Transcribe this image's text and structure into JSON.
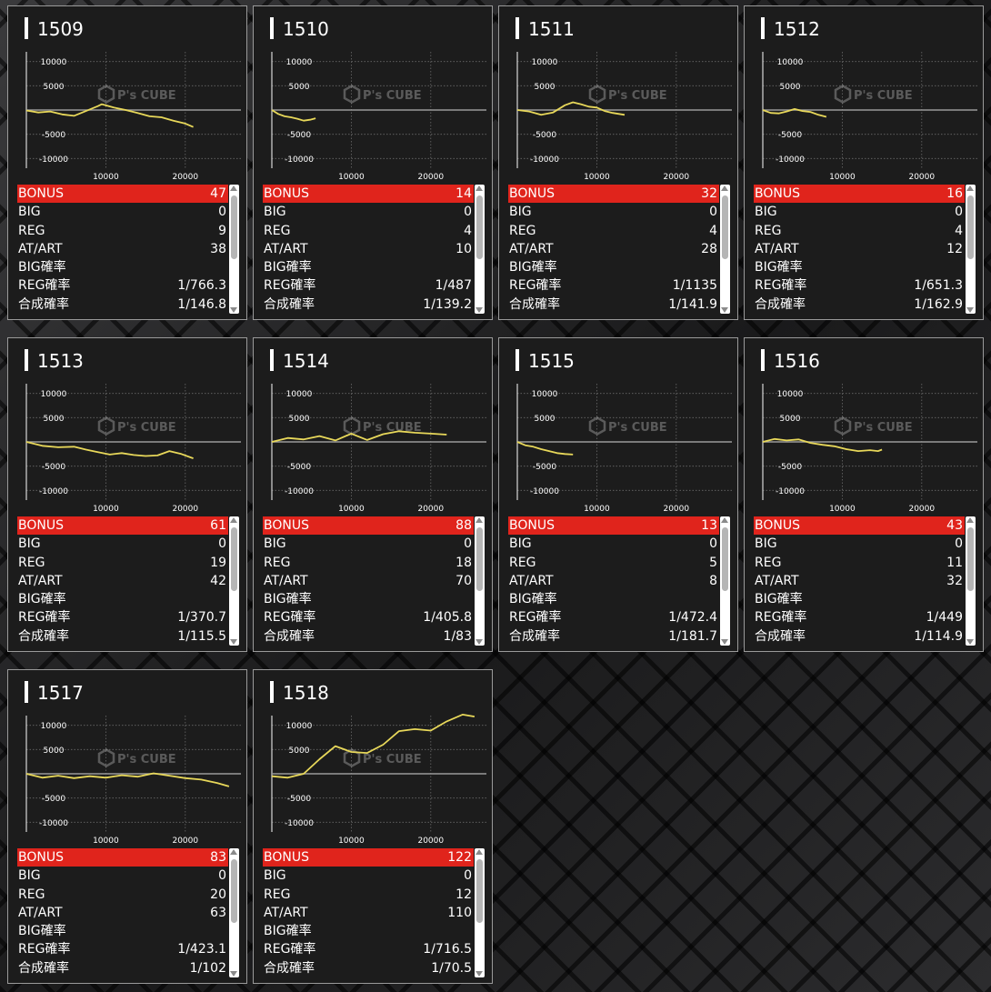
{
  "labels": {
    "bonus": "BONUS",
    "big": "BIG",
    "reg": "REG",
    "atart": "AT/ART",
    "big_rate": "BIG確率",
    "reg_rate": "REG確率",
    "combined_rate": "合成確率"
  },
  "watermark": {
    "text": "P's CUBE"
  },
  "colors": {
    "accent": "#e0241c",
    "line": "#e8d85a",
    "panel": "#1c1c1c"
  },
  "machines": [
    {
      "id": "1509",
      "bonus": "47",
      "big": "0",
      "reg": "9",
      "atart": "38",
      "big_rate": "",
      "reg_rate": "1/766.3",
      "combined_rate": "1/146.8",
      "chart_data": {
        "type": "line",
        "xlim": [
          0,
          27000
        ],
        "ylim": [
          -12000,
          12000
        ],
        "y_ticks": [
          "10000",
          "5000",
          "-5000",
          "-10000"
        ],
        "x_ticks": [
          "10000",
          "20000"
        ],
        "x": [
          0,
          1500,
          3000,
          4500,
          6000,
          7500,
          9000,
          9500,
          11000,
          12500,
          14000,
          15500,
          17000,
          18500,
          20000,
          21000
        ],
        "y": [
          -100,
          -500,
          -300,
          -900,
          -1200,
          -200,
          800,
          1200,
          500,
          0,
          -600,
          -1300,
          -1500,
          -2200,
          -2800,
          -3500
        ]
      }
    },
    {
      "id": "1510",
      "bonus": "14",
      "big": "0",
      "reg": "4",
      "atart": "10",
      "big_rate": "",
      "reg_rate": "1/487",
      "combined_rate": "1/139.2",
      "chart_data": {
        "type": "line",
        "xlim": [
          0,
          27000
        ],
        "ylim": [
          -12000,
          12000
        ],
        "y_ticks": [
          "10000",
          "5000",
          "-5000",
          "-10000"
        ],
        "x_ticks": [
          "10000",
          "20000"
        ],
        "x": [
          0,
          800,
          1600,
          2400,
          3200,
          4000,
          4800,
          5500
        ],
        "y": [
          0,
          -800,
          -1300,
          -1500,
          -1800,
          -2200,
          -2000,
          -1700
        ]
      }
    },
    {
      "id": "1511",
      "bonus": "32",
      "big": "0",
      "reg": "4",
      "atart": "28",
      "big_rate": "",
      "reg_rate": "1/1135",
      "combined_rate": "1/141.9",
      "chart_data": {
        "type": "line",
        "xlim": [
          0,
          27000
        ],
        "ylim": [
          -12000,
          12000
        ],
        "y_ticks": [
          "10000",
          "5000",
          "-5000",
          "-10000"
        ],
        "x_ticks": [
          "10000",
          "20000"
        ],
        "x": [
          0,
          1500,
          3000,
          4500,
          6000,
          7000,
          8000,
          9000,
          10000,
          11000,
          12000,
          13500
        ],
        "y": [
          0,
          -300,
          -1000,
          -500,
          1000,
          1600,
          1200,
          700,
          500,
          -200,
          -600,
          -1000
        ]
      }
    },
    {
      "id": "1512",
      "bonus": "16",
      "big": "0",
      "reg": "4",
      "atart": "12",
      "big_rate": "",
      "reg_rate": "1/651.3",
      "combined_rate": "1/162.9",
      "chart_data": {
        "type": "line",
        "xlim": [
          0,
          27000
        ],
        "ylim": [
          -12000,
          12000
        ],
        "y_ticks": [
          "10000",
          "5000",
          "-5000",
          "-10000"
        ],
        "x_ticks": [
          "10000",
          "20000"
        ],
        "x": [
          0,
          1000,
          2000,
          3000,
          4000,
          5000,
          6000,
          7000,
          8000
        ],
        "y": [
          0,
          -600,
          -700,
          -300,
          200,
          -200,
          -400,
          -1000,
          -1400
        ]
      }
    },
    {
      "id": "1513",
      "bonus": "61",
      "big": "0",
      "reg": "19",
      "atart": "42",
      "big_rate": "",
      "reg_rate": "1/370.7",
      "combined_rate": "1/115.5",
      "chart_data": {
        "type": "line",
        "xlim": [
          0,
          27000
        ],
        "ylim": [
          -12000,
          12000
        ],
        "y_ticks": [
          "10000",
          "5000",
          "-5000",
          "-10000"
        ],
        "x_ticks": [
          "10000",
          "20000"
        ],
        "x": [
          0,
          2000,
          4000,
          6000,
          7500,
          9000,
          10500,
          12000,
          13500,
          15000,
          16500,
          18000,
          19500,
          21000
        ],
        "y": [
          0,
          -800,
          -1100,
          -1000,
          -1600,
          -2100,
          -2600,
          -2300,
          -2700,
          -2900,
          -2800,
          -1900,
          -2500,
          -3400
        ]
      }
    },
    {
      "id": "1514",
      "bonus": "88",
      "big": "0",
      "reg": "18",
      "atart": "70",
      "big_rate": "",
      "reg_rate": "1/405.8",
      "combined_rate": "1/83",
      "chart_data": {
        "type": "line",
        "xlim": [
          0,
          27000
        ],
        "ylim": [
          -12000,
          12000
        ],
        "y_ticks": [
          "10000",
          "5000",
          "-5000",
          "-10000"
        ],
        "x_ticks": [
          "10000",
          "20000"
        ],
        "x": [
          0,
          2000,
          4000,
          6000,
          8000,
          10000,
          12000,
          14000,
          16000,
          18000,
          20000,
          22000
        ],
        "y": [
          0,
          800,
          500,
          1200,
          300,
          1700,
          400,
          1600,
          2200,
          1900,
          1700,
          1500
        ]
      }
    },
    {
      "id": "1515",
      "bonus": "13",
      "big": "0",
      "reg": "5",
      "atart": "8",
      "big_rate": "",
      "reg_rate": "1/472.4",
      "combined_rate": "1/181.7",
      "chart_data": {
        "type": "line",
        "xlim": [
          0,
          27000
        ],
        "ylim": [
          -12000,
          12000
        ],
        "y_ticks": [
          "10000",
          "5000",
          "-5000",
          "-10000"
        ],
        "x_ticks": [
          "10000",
          "20000"
        ],
        "x": [
          0,
          1000,
          2000,
          3000,
          4000,
          5000,
          6000,
          7000
        ],
        "y": [
          0,
          -700,
          -1000,
          -1500,
          -1900,
          -2300,
          -2500,
          -2600
        ]
      }
    },
    {
      "id": "1516",
      "bonus": "43",
      "big": "0",
      "reg": "11",
      "atart": "32",
      "big_rate": "",
      "reg_rate": "1/449",
      "combined_rate": "1/114.9",
      "chart_data": {
        "type": "line",
        "xlim": [
          0,
          27000
        ],
        "ylim": [
          -12000,
          12000
        ],
        "y_ticks": [
          "10000",
          "5000",
          "-5000",
          "-10000"
        ],
        "x_ticks": [
          "10000",
          "20000"
        ],
        "x": [
          0,
          1500,
          3000,
          4500,
          6000,
          7500,
          9000,
          10500,
          12000,
          13500,
          14500,
          15000
        ],
        "y": [
          0,
          600,
          300,
          500,
          -200,
          -600,
          -900,
          -1500,
          -1900,
          -1700,
          -1900,
          -1600
        ]
      }
    },
    {
      "id": "1517",
      "bonus": "83",
      "big": "0",
      "reg": "20",
      "atart": "63",
      "big_rate": "",
      "reg_rate": "1/423.1",
      "combined_rate": "1/102",
      "chart_data": {
        "type": "line",
        "xlim": [
          0,
          27000
        ],
        "ylim": [
          -12000,
          12000
        ],
        "y_ticks": [
          "10000",
          "5000",
          "-5000",
          "-10000"
        ],
        "x_ticks": [
          "10000",
          "20000"
        ],
        "x": [
          0,
          2000,
          4000,
          6000,
          8000,
          10000,
          12000,
          14000,
          16000,
          18000,
          20000,
          22000,
          24000,
          25500
        ],
        "y": [
          0,
          -800,
          -400,
          -900,
          -500,
          -800,
          -300,
          -600,
          100,
          -400,
          -900,
          -1200,
          -1900,
          -2600
        ]
      }
    },
    {
      "id": "1518",
      "bonus": "122",
      "big": "0",
      "reg": "12",
      "atart": "110",
      "big_rate": "",
      "reg_rate": "1/716.5",
      "combined_rate": "1/70.5",
      "chart_data": {
        "type": "line",
        "xlim": [
          0,
          27000
        ],
        "ylim": [
          -12000,
          12000
        ],
        "y_ticks": [
          "10000",
          "5000",
          "-5000",
          "-10000"
        ],
        "x_ticks": [
          "10000",
          "20000"
        ],
        "x": [
          0,
          2000,
          4000,
          6000,
          8000,
          10000,
          12000,
          14000,
          16000,
          18000,
          20000,
          22000,
          24000,
          25500
        ],
        "y": [
          -500,
          -800,
          0,
          3000,
          5700,
          4500,
          4300,
          6000,
          8800,
          9200,
          8900,
          10800,
          12200,
          11800
        ]
      }
    }
  ]
}
